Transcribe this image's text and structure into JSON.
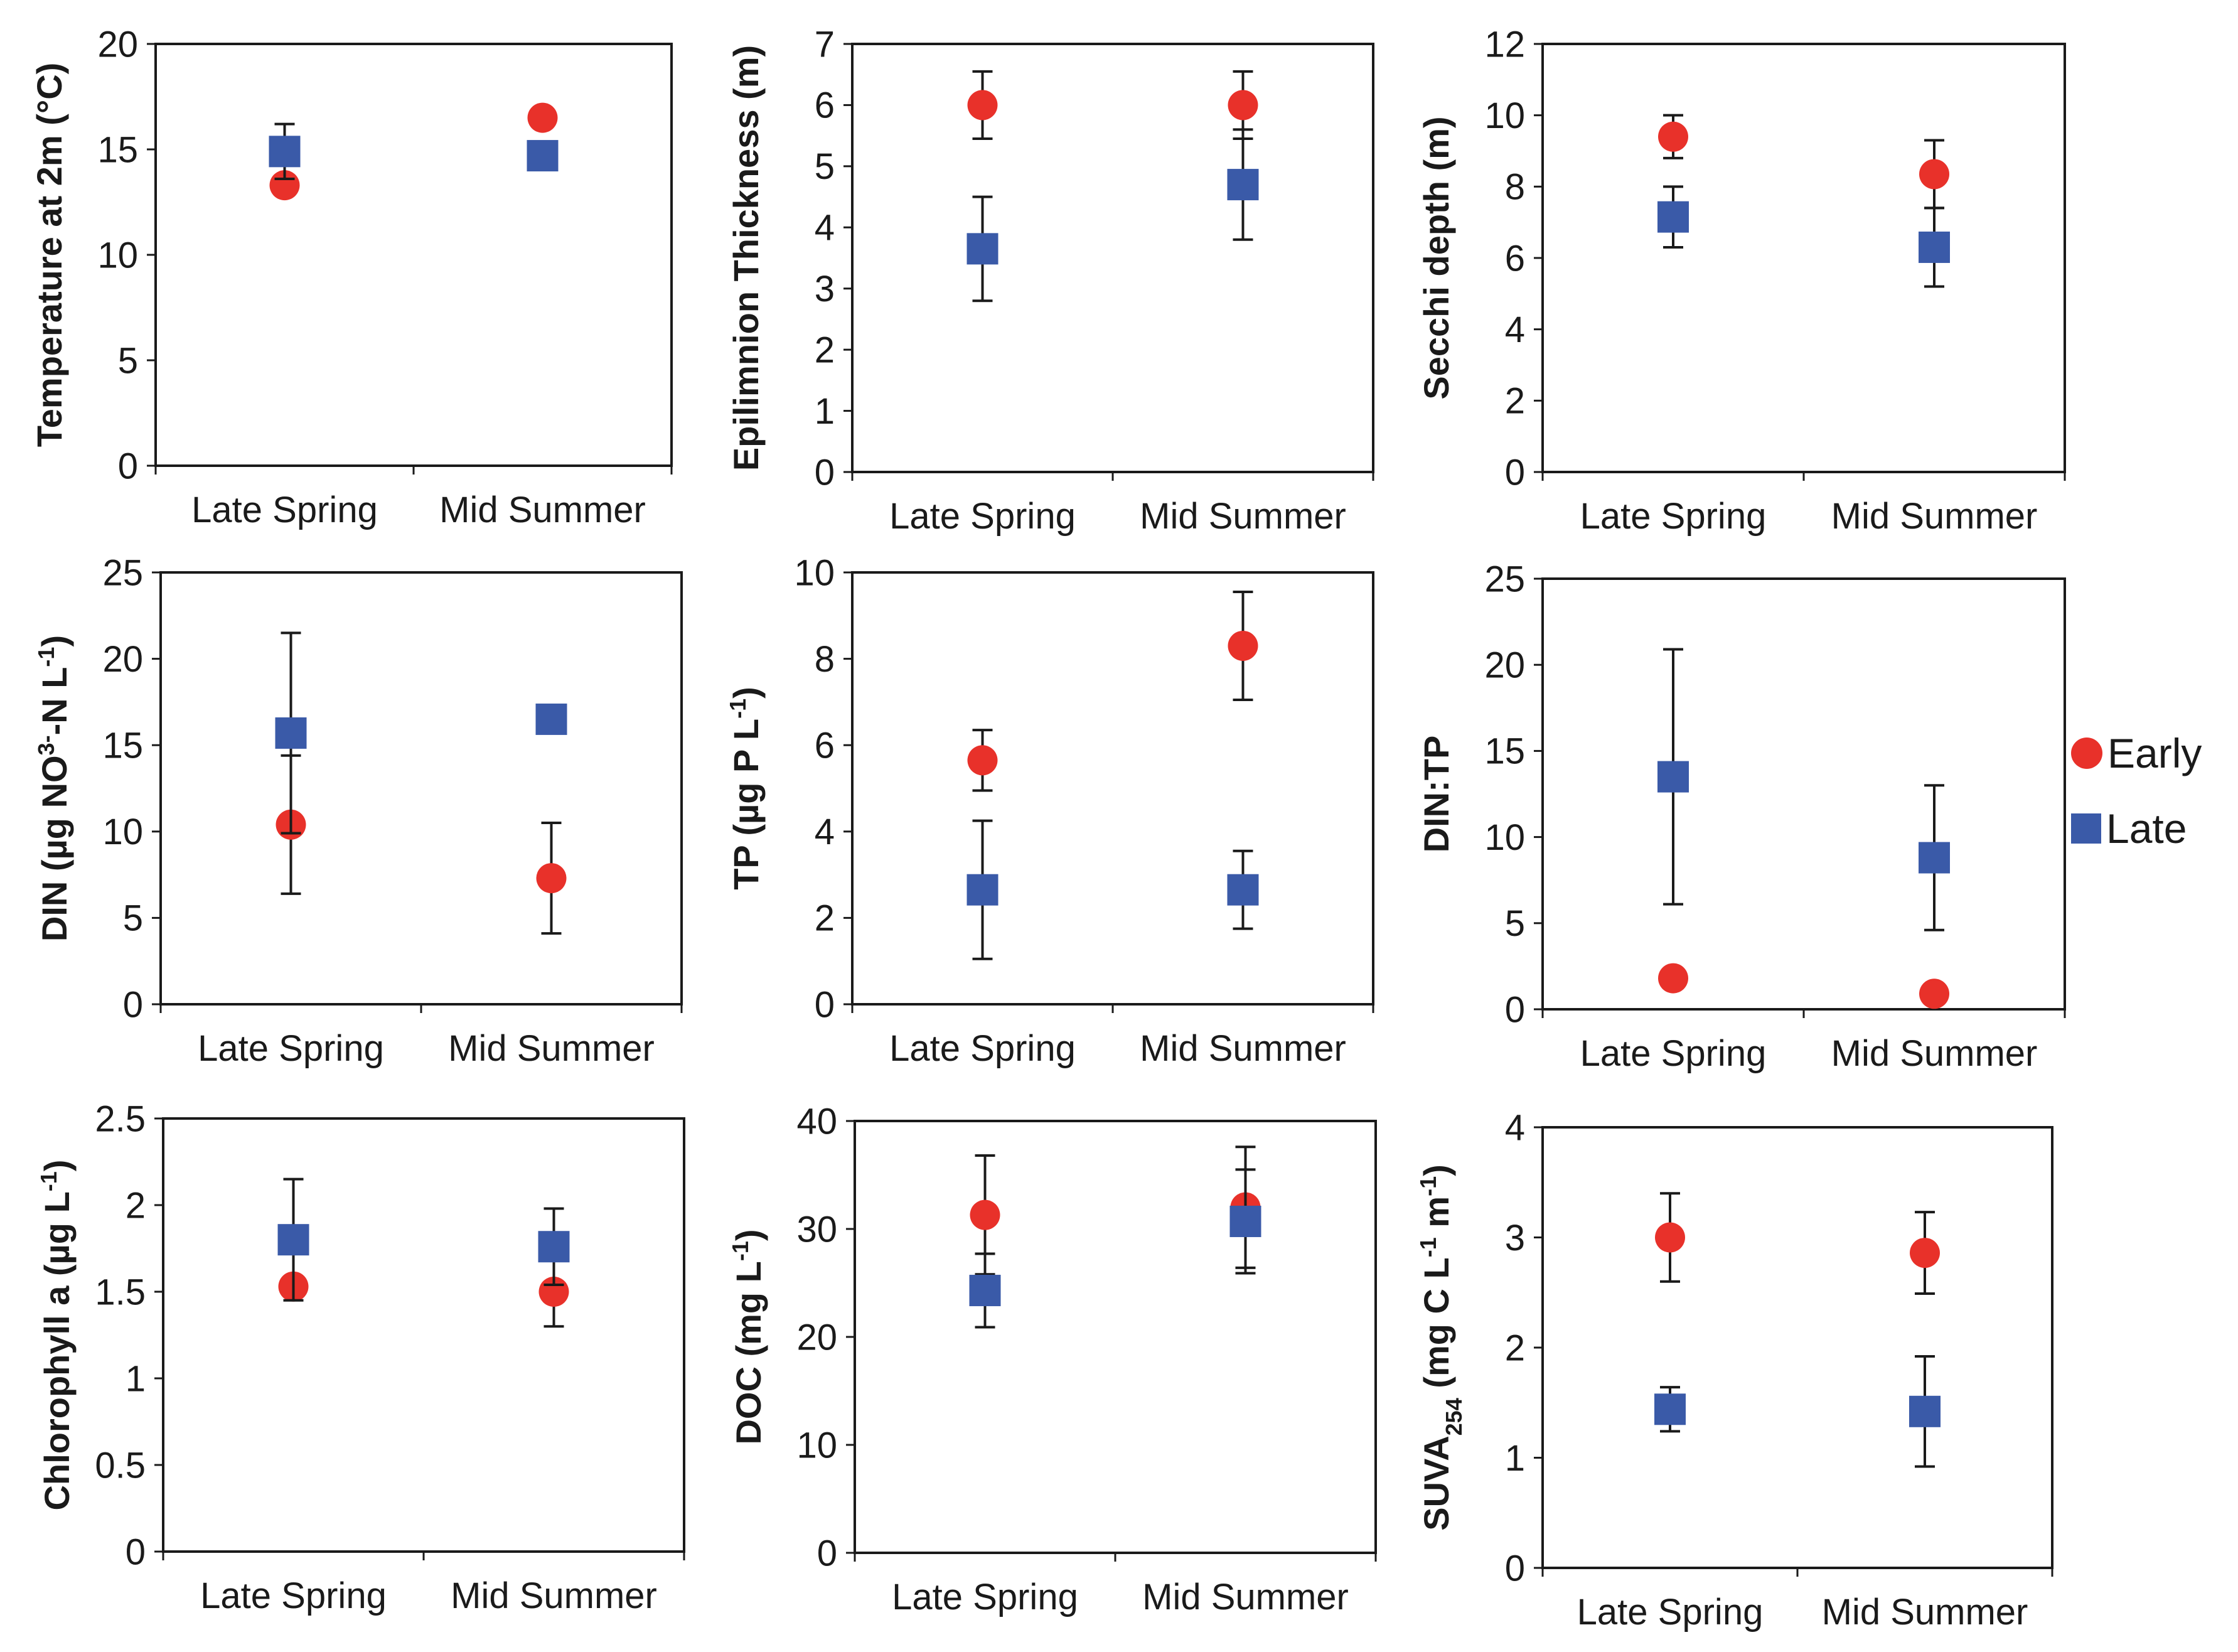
{
  "colors": {
    "early": "#e8312a",
    "late": "#3a5aa8",
    "axis": "#1a1a1a",
    "error_bar": "#1a1a1a"
  },
  "legend": {
    "placement": "right-middle",
    "items": [
      {
        "label": "Early",
        "marker": "circle",
        "color": "#e8312a"
      },
      {
        "label": "Late",
        "marker": "square",
        "color": "#3a5aa8"
      }
    ]
  },
  "chart_data": [
    {
      "type": "scatter",
      "panel": "row1-col1",
      "ylabel": "Temperature at 2m (°C)",
      "ylabel_parts": [
        {
          "t": "Temperature at 2m (°C)"
        }
      ],
      "categories": [
        "Late Spring",
        "Mid Summer"
      ],
      "ylim": [
        0,
        20
      ],
      "yticks": [
        0,
        5,
        10,
        15,
        20
      ],
      "ytick_labels": [
        "0",
        "5",
        "10",
        "15",
        "20"
      ],
      "series": [
        {
          "name": "Early",
          "values": [
            13.3,
            16.5
          ],
          "errors": [
            0,
            0
          ]
        },
        {
          "name": "Late",
          "values": [
            14.9,
            14.7
          ],
          "errors": [
            1.3,
            0
          ]
        }
      ]
    },
    {
      "type": "scatter",
      "panel": "row1-col2",
      "ylabel": "Epilimnion Thickness (m)",
      "ylabel_parts": [
        {
          "t": "Epilimnion Thickness (m)"
        }
      ],
      "categories": [
        "Late Spring",
        "Mid Summer"
      ],
      "ylim": [
        0,
        7
      ],
      "yticks": [
        0,
        1,
        2,
        3,
        4,
        5,
        6,
        7
      ],
      "ytick_labels": [
        "0",
        "1",
        "2",
        "3",
        "4",
        "5",
        "6",
        "7"
      ],
      "series": [
        {
          "name": "Early",
          "values": [
            6.0,
            6.0
          ],
          "errors": [
            0.55,
            0.55
          ]
        },
        {
          "name": "Late",
          "values": [
            3.65,
            4.7
          ],
          "errors": [
            0.85,
            0.9
          ]
        }
      ]
    },
    {
      "type": "scatter",
      "panel": "row1-col3",
      "ylabel": "Secchi depth (m)",
      "ylabel_parts": [
        {
          "t": "Secchi depth (m)"
        }
      ],
      "categories": [
        "Late Spring",
        "Mid Summer"
      ],
      "ylim": [
        0,
        12
      ],
      "yticks": [
        0,
        2,
        4,
        6,
        8,
        10,
        12
      ],
      "ytick_labels": [
        "0",
        "2",
        "4",
        "6",
        "8",
        "10",
        "12"
      ],
      "series": [
        {
          "name": "Early",
          "values": [
            9.4,
            8.35
          ],
          "errors": [
            0.6,
            0.95
          ]
        },
        {
          "name": "Late",
          "values": [
            7.15,
            6.3
          ],
          "errors": [
            0.85,
            1.1
          ]
        }
      ]
    },
    {
      "type": "scatter",
      "panel": "row2-col1",
      "ylabel": "DIN (µg NO3--N L-1)",
      "ylabel_parts": [
        {
          "t": "DIN (µg NO"
        },
        {
          "t": "3-",
          "s": "sup"
        },
        {
          "t": "-N L"
        },
        {
          "t": "-1",
          "s": "sup"
        },
        {
          "t": ")"
        }
      ],
      "categories": [
        "Late Spring",
        "Mid Summer"
      ],
      "ylim": [
        0,
        25
      ],
      "yticks": [
        0,
        5,
        10,
        15,
        20,
        25
      ],
      "ytick_labels": [
        "0",
        "5",
        "10",
        "15",
        "20",
        "25"
      ],
      "series": [
        {
          "name": "Early",
          "values": [
            10.4,
            7.3
          ],
          "errors": [
            4.0,
            3.2
          ]
        },
        {
          "name": "Late",
          "values": [
            15.7,
            16.5
          ],
          "errors": [
            5.8,
            0
          ]
        }
      ]
    },
    {
      "type": "scatter",
      "panel": "row2-col2",
      "ylabel": "TP (µg P L-1)",
      "ylabel_parts": [
        {
          "t": "TP (µg P L"
        },
        {
          "t": "-1",
          "s": "sup"
        },
        {
          "t": ")"
        }
      ],
      "categories": [
        "Late Spring",
        "Mid Summer"
      ],
      "ylim": [
        0,
        10
      ],
      "yticks": [
        0,
        2,
        4,
        6,
        8,
        10
      ],
      "ytick_labels": [
        "0",
        "2",
        "4",
        "6",
        "8",
        "10"
      ],
      "series": [
        {
          "name": "Early",
          "values": [
            5.65,
            8.3
          ],
          "errors": [
            0.7,
            1.25
          ]
        },
        {
          "name": "Late",
          "values": [
            2.65,
            2.65
          ],
          "errors": [
            1.6,
            0.9
          ]
        }
      ]
    },
    {
      "type": "scatter",
      "panel": "row2-col3",
      "ylabel": "DIN:TP",
      "ylabel_parts": [
        {
          "t": "DIN:TP"
        }
      ],
      "categories": [
        "Late Spring",
        "Mid Summer"
      ],
      "ylim": [
        0,
        25
      ],
      "yticks": [
        0,
        5,
        10,
        15,
        20,
        25
      ],
      "ytick_labels": [
        "0",
        "5",
        "10",
        "15",
        "20",
        "25"
      ],
      "series": [
        {
          "name": "Early",
          "values": [
            1.8,
            0.9
          ],
          "errors": [
            0,
            0
          ]
        },
        {
          "name": "Late",
          "values": [
            13.5,
            8.8
          ],
          "errors": [
            7.4,
            4.2
          ]
        }
      ]
    },
    {
      "type": "scatter",
      "panel": "row3-col1",
      "ylabel": "Chlorophyll a (µg L-1)",
      "ylabel_parts": [
        {
          "t": "Chlorophyll a (µg L"
        },
        {
          "t": "-1",
          "s": "sup"
        },
        {
          "t": ")"
        }
      ],
      "categories": [
        "Late Spring",
        "Mid Summer"
      ],
      "ylim": [
        0,
        2.5
      ],
      "yticks": [
        0,
        0.5,
        1,
        1.5,
        2,
        2.5
      ],
      "ytick_labels": [
        "0",
        "0.5",
        "1",
        "1.5",
        "2",
        "2.5"
      ],
      "series": [
        {
          "name": "Early",
          "values": [
            1.53,
            1.5
          ],
          "errors": [
            0,
            0.2
          ]
        },
        {
          "name": "Late",
          "values": [
            1.8,
            1.76
          ],
          "errors": [
            0.35,
            0.22
          ]
        }
      ]
    },
    {
      "type": "scatter",
      "panel": "row3-col2",
      "ylabel": "DOC (mg L-1)",
      "ylabel_parts": [
        {
          "t": "DOC (mg L"
        },
        {
          "t": "-1",
          "s": "sup"
        },
        {
          "t": ")"
        }
      ],
      "categories": [
        "Late Spring",
        "Mid Summer"
      ],
      "ylim": [
        0,
        40
      ],
      "yticks": [
        0,
        10,
        20,
        30,
        40
      ],
      "ytick_labels": [
        "0",
        "10",
        "20",
        "30",
        "40"
      ],
      "series": [
        {
          "name": "Early",
          "values": [
            31.3,
            32.0
          ],
          "errors": [
            5.5,
            5.6
          ]
        },
        {
          "name": "Late",
          "values": [
            24.3,
            30.7
          ],
          "errors": [
            3.4,
            4.8
          ]
        }
      ]
    },
    {
      "type": "scatter",
      "panel": "row3-col3",
      "ylabel": "SUVA254 (mg C L-1 m-1)",
      "ylabel_parts": [
        {
          "t": "SUVA"
        },
        {
          "t": "254",
          "s": "sub"
        },
        {
          "t": " (mg C L"
        },
        {
          "t": "-1",
          "s": "sup"
        },
        {
          "t": " m"
        },
        {
          "t": "-1",
          "s": "sup"
        },
        {
          "t": ")"
        }
      ],
      "categories": [
        "Late Spring",
        "Mid Summer"
      ],
      "ylim": [
        0,
        4
      ],
      "yticks": [
        0,
        1,
        2,
        3,
        4
      ],
      "ytick_labels": [
        "0",
        "1",
        "2",
        "3",
        "4"
      ],
      "series": [
        {
          "name": "Early",
          "values": [
            3.0,
            2.86
          ],
          "errors": [
            0.4,
            0.37
          ]
        },
        {
          "name": "Late",
          "values": [
            1.44,
            1.42
          ],
          "errors": [
            0.2,
            0.5
          ]
        }
      ]
    }
  ]
}
